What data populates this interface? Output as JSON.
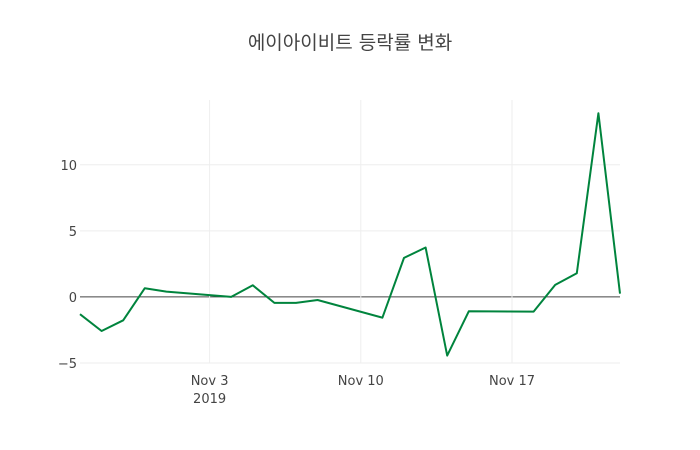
{
  "chart_data": {
    "type": "line",
    "title": "에이아이비트 등락률 변화",
    "xlabel": "",
    "ylabel": "",
    "x": [
      "2019-10-28",
      "2019-10-29",
      "2019-10-30",
      "2019-10-31",
      "2019-11-01",
      "2019-11-04",
      "2019-11-05",
      "2019-11-06",
      "2019-11-07",
      "2019-11-08",
      "2019-11-11",
      "2019-11-12",
      "2019-11-13",
      "2019-11-14",
      "2019-11-15",
      "2019-11-18",
      "2019-11-19",
      "2019-11-20",
      "2019-11-21",
      "2019-11-22"
    ],
    "series": [
      {
        "name": "등락률",
        "color": "#00843d",
        "values": [
          -1.31,
          -2.58,
          -1.77,
          0.66,
          0.4,
          0.0,
          0.88,
          -0.45,
          -0.45,
          -0.23,
          -1.57,
          2.95,
          3.74,
          -4.44,
          -1.09,
          -1.11,
          0.91,
          1.79,
          13.9,
          0.25
        ]
      }
    ],
    "xlim": [
      "2019-10-28",
      "2019-11-22"
    ],
    "ylim": [
      -5.0,
      14.9
    ],
    "x_ticks": [
      {
        "date": "2019-11-03",
        "label": "Nov 3",
        "sublabel": "2019"
      },
      {
        "date": "2019-11-10",
        "label": "Nov 10"
      },
      {
        "date": "2019-11-17",
        "label": "Nov 17"
      }
    ],
    "y_ticks": [
      {
        "value": -5,
        "label": "−5"
      },
      {
        "value": 0,
        "label": "0"
      },
      {
        "value": 5,
        "label": "5"
      },
      {
        "value": 10,
        "label": "10"
      }
    ],
    "grid": true,
    "legend": "none"
  }
}
